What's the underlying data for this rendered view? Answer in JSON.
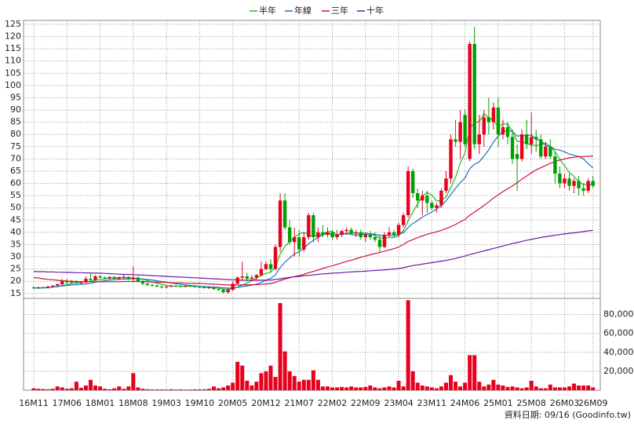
{
  "chart_data": {
    "type": "candlestick",
    "footnote": "資料日期: 09/16 (Goodinfo.tw)",
    "categories": [
      "16M11",
      null,
      null,
      null,
      null,
      null,
      null,
      "17M06",
      null,
      null,
      null,
      null,
      null,
      null,
      "18M01",
      null,
      null,
      null,
      null,
      null,
      null,
      "18M08",
      null,
      null,
      null,
      null,
      null,
      null,
      "19M03",
      null,
      null,
      null,
      null,
      null,
      null,
      "19M10",
      null,
      null,
      null,
      null,
      null,
      null,
      "20M05",
      null,
      null,
      null,
      null,
      null,
      null,
      "20M12",
      null,
      null,
      null,
      null,
      null,
      null,
      "21M07",
      null,
      null,
      null,
      null,
      null,
      null,
      "22M02",
      null,
      null,
      null,
      null,
      null,
      null,
      "22M09",
      null,
      null,
      null,
      null,
      null,
      null,
      "23M04",
      null,
      null,
      null,
      null,
      null,
      null,
      "23M11",
      null,
      null,
      null,
      null,
      null,
      null,
      "24M06",
      null,
      null,
      null,
      null,
      null,
      null,
      "25M01",
      null,
      null,
      null,
      null,
      null,
      null,
      "25M08",
      null,
      null,
      null,
      null,
      null,
      null,
      "26M03",
      null,
      null,
      null,
      null,
      null,
      "26M09"
    ],
    "open": [
      17.5,
      17.2,
      17.5,
      17.3,
      17.8,
      18.2,
      18.8,
      20,
      19.5,
      20,
      19.2,
      19.5,
      21,
      20.5,
      22,
      21.5,
      21.2,
      21.8,
      21,
      21.5,
      21.8,
      20.8,
      21.5,
      20,
      19,
      18.5,
      18.2,
      17.8,
      17.5,
      17.8,
      18.2,
      18,
      17.8,
      18.1,
      17.9,
      17.7,
      17.5,
      17.2,
      17.5,
      16.8,
      16.5,
      15.5,
      16.5,
      19,
      21.5,
      22,
      21,
      21.5,
      22.5,
      25,
      27,
      25,
      34,
      53,
      42,
      36,
      38,
      33,
      38,
      47,
      38,
      40,
      39,
      40,
      38,
      39,
      40.5,
      41,
      39.5,
      40,
      38,
      39,
      38,
      37,
      34,
      39,
      40,
      39,
      43,
      47,
      65,
      56,
      53,
      55,
      52,
      50,
      51,
      57,
      62,
      78,
      77,
      88,
      70,
      117,
      76,
      80,
      87,
      85,
      91,
      80,
      83,
      79,
      72,
      70,
      80,
      76,
      79,
      78,
      71,
      75,
      71,
      64,
      60,
      62,
      59,
      61,
      58,
      57,
      61
    ],
    "high": [
      18,
      17.8,
      18,
      18.2,
      18.5,
      19,
      21,
      21,
      20.5,
      20.5,
      20,
      22,
      23,
      22.5,
      22.5,
      22,
      22,
      22,
      22,
      23,
      22,
      26,
      22,
      20.5,
      19.5,
      19,
      18.8,
      18.3,
      18,
      18.5,
      18.5,
      18.5,
      18.3,
      18.5,
      18.3,
      18,
      18,
      17.8,
      18,
      17.5,
      17,
      17,
      20,
      22,
      28,
      23.5,
      22.5,
      23,
      28,
      28,
      29,
      35,
      56,
      56,
      45,
      42,
      41,
      40,
      48,
      48,
      42,
      43,
      42,
      41,
      41,
      41,
      42,
      42,
      41,
      41,
      40,
      40.5,
      40,
      39,
      40,
      42,
      41,
      44,
      48,
      67,
      66,
      58,
      57,
      57,
      53,
      52,
      58,
      65,
      80,
      86,
      90,
      90,
      118,
      124,
      88,
      90,
      95,
      93,
      95,
      86,
      85,
      82,
      76,
      82,
      86,
      89,
      82,
      80,
      77,
      78,
      73,
      67,
      64,
      64,
      62,
      63,
      60,
      62,
      63
    ],
    "low": [
      16.8,
      16.9,
      17,
      17,
      17.5,
      18,
      18.5,
      18.8,
      19,
      19,
      18.5,
      19.3,
      20,
      20.2,
      21,
      20.8,
      20.5,
      20.8,
      20.5,
      20.8,
      20.5,
      20,
      19.5,
      18.5,
      18,
      17.8,
      17.5,
      17,
      17,
      17.5,
      17.8,
      17.5,
      17.5,
      17.6,
      17.5,
      17.2,
      17,
      16.8,
      16.5,
      16,
      15,
      14.8,
      16,
      18.8,
      20.5,
      20,
      20,
      20.5,
      22,
      24.5,
      24,
      24.5,
      32,
      41,
      35,
      30,
      30,
      32,
      37,
      36,
      36,
      38,
      38,
      37,
      37,
      38,
      39,
      39,
      38,
      37,
      36,
      37,
      36,
      32,
      33.5,
      38,
      38,
      38,
      42,
      46,
      54,
      50,
      47,
      48,
      49,
      48,
      50,
      56,
      60,
      75,
      70,
      75,
      69,
      74,
      72,
      75,
      80,
      82,
      75,
      78,
      76,
      68,
      57,
      69,
      74,
      72,
      73,
      70,
      70,
      70,
      60,
      58,
      58,
      57,
      56,
      55,
      55,
      56,
      58
    ],
    "close": [
      17.2,
      17.5,
      17.3,
      17.8,
      18.2,
      18.8,
      20,
      19.5,
      20,
      19.2,
      19.5,
      21,
      20.5,
      22,
      21.5,
      21.2,
      21.8,
      21,
      21.5,
      21.8,
      20.8,
      21.5,
      20,
      19,
      18.5,
      18.2,
      17.8,
      17.5,
      17.8,
      18.2,
      18,
      17.8,
      18.1,
      17.9,
      17.7,
      17.5,
      17.2,
      17.5,
      16.8,
      16.5,
      15.5,
      16.5,
      19,
      21.5,
      22,
      21,
      21.5,
      22.5,
      25,
      27,
      25,
      34,
      53,
      42,
      36,
      38,
      33,
      38,
      47,
      38,
      40,
      39,
      40,
      38,
      39,
      40.5,
      41,
      39.5,
      40,
      38,
      39,
      38,
      37,
      34,
      39,
      40,
      39,
      43,
      47,
      65,
      56,
      53,
      55,
      52,
      50,
      51,
      57,
      62,
      78,
      77,
      85,
      76,
      117,
      76,
      80,
      87,
      85,
      91,
      80,
      83,
      79,
      70,
      70,
      80,
      76,
      79,
      78,
      71,
      75,
      71,
      64,
      60,
      62,
      59,
      61,
      58,
      57,
      61,
      59
    ],
    "up_color": "#e8001c",
    "down_color": "#00a000",
    "ylim": [
      13,
      125
    ],
    "yticks": [
      15,
      20,
      25,
      30,
      35,
      40,
      45,
      50,
      55,
      60,
      65,
      70,
      75,
      80,
      85,
      90,
      95,
      100,
      105,
      110,
      115,
      120,
      125
    ],
    "series": [
      {
        "name": "半年",
        "color": "#22bb22",
        "values": [
          17.2,
          17.3,
          17.3,
          17.4,
          17.6,
          17.8,
          18.3,
          18.6,
          19.1,
          19.3,
          19.5,
          19.9,
          19.95,
          20.4,
          20.6,
          21,
          21.3,
          21.3,
          21.5,
          21.5,
          21.4,
          21.4,
          21.1,
          20.8,
          20.3,
          19.7,
          19.2,
          18.7,
          18.3,
          18,
          17.9,
          17.9,
          17.9,
          18,
          18,
          17.8,
          17.7,
          17.6,
          17.4,
          17.2,
          16.8,
          16.7,
          17,
          17.6,
          18.5,
          19.3,
          20.3,
          21.3,
          22.3,
          23.2,
          23.7,
          25.8,
          31.1,
          34.3,
          36.2,
          38,
          39.3,
          40,
          39,
          38.3,
          39,
          39,
          40.3,
          40.3,
          39,
          39.4,
          39.6,
          39.7,
          39.7,
          39.7,
          39.7,
          39.3,
          38.6,
          37.7,
          37.5,
          37.8,
          37.8,
          38.7,
          40.7,
          44.7,
          48.3,
          51.5,
          54.8,
          56.3,
          55.2,
          52.8,
          53,
          54.5,
          58.3,
          62.5,
          68.3,
          72.5,
          82.5,
          84.8,
          85.2,
          88.5,
          86.8,
          85.8,
          83.2,
          84.3,
          84.2,
          81.3,
          77.2,
          77,
          76.3,
          75.7,
          75.5,
          75.7,
          76.5,
          75,
          73,
          69.8,
          67.2,
          64.5,
          62.8,
          60.7,
          59.5,
          59.7,
          59.3
        ]
      },
      {
        "name": "年線",
        "color": "#1a73c8",
        "values": [
          17.2,
          17.3,
          17.3,
          17.4,
          17.6,
          17.8,
          18.1,
          18.3,
          18.5,
          18.6,
          18.7,
          18.9,
          19.2,
          19.6,
          19.9,
          20.2,
          20.5,
          20.6,
          20.8,
          20.9,
          21,
          21.1,
          21.1,
          20.9,
          20.7,
          20.5,
          20.2,
          19.9,
          19.6,
          19.3,
          19,
          18.7,
          18.5,
          18.3,
          18.1,
          17.9,
          17.8,
          17.7,
          17.6,
          17.5,
          17.3,
          17.2,
          17.2,
          17.5,
          17.8,
          18.1,
          18.4,
          18.8,
          19.5,
          20.4,
          21.2,
          22.6,
          25.6,
          27.8,
          29.5,
          31.2,
          32.1,
          33.4,
          35.4,
          36.7,
          37.9,
          39,
          39.5,
          39,
          38.8,
          39.2,
          39.4,
          39.2,
          38.8,
          39.2,
          39.2,
          39.3,
          39.2,
          38.8,
          38.6,
          38.7,
          38.6,
          39.2,
          39.8,
          42,
          43.6,
          44.8,
          46.2,
          47.3,
          48.3,
          49.5,
          51,
          52.9,
          55.4,
          58,
          60.3,
          62.2,
          66,
          67.8,
          68.8,
          71.1,
          73.7,
          76.9,
          79.3,
          81,
          81.7,
          81.2,
          79.3,
          79.6,
          79.5,
          79.8,
          78,
          77.5,
          75.5,
          75,
          73.9,
          73.6,
          72.9,
          72,
          71.5,
          71,
          70,
          68,
          66.3
        ]
      },
      {
        "name": "三年",
        "color": "#d0103a",
        "values": [
          21.5,
          21.3,
          21,
          20.8,
          20.6,
          20.4,
          20.2,
          20.1,
          20,
          19.9,
          19.8,
          19.8,
          19.8,
          19.8,
          19.8,
          19.8,
          19.8,
          19.8,
          19.8,
          19.9,
          19.9,
          19.9,
          19.9,
          19.9,
          19.8,
          19.7,
          19.6,
          19.5,
          19.5,
          19.4,
          19.3,
          19.3,
          19.2,
          19.2,
          19.1,
          19.1,
          19,
          18.9,
          18.8,
          18.7,
          18.6,
          18.5,
          18.5,
          18.5,
          18.5,
          18.5,
          18.6,
          18.6,
          18.7,
          18.9,
          19.1,
          19.5,
          20.3,
          20.9,
          21.4,
          21.9,
          22.3,
          22.8,
          23.5,
          24,
          24.6,
          25.2,
          25.8,
          26.3,
          26.9,
          27.5,
          28.1,
          28.6,
          29.2,
          29.8,
          30.3,
          30.8,
          31.3,
          31.8,
          32.3,
          32.8,
          33.3,
          34,
          35,
          36.3,
          37,
          37.8,
          38.5,
          39.2,
          39.7,
          40.2,
          40.8,
          41.5,
          42.3,
          43.2,
          44.3,
          45.3,
          47,
          48.3,
          49.6,
          51,
          52.4,
          54,
          55.3,
          56.6,
          57.8,
          59,
          60.3,
          61.7,
          63,
          64.3,
          65.5,
          66.4,
          67.3,
          68.2,
          68.9,
          69.5,
          70,
          70.4,
          70.7,
          70.9,
          71,
          71.1,
          71.2
        ]
      },
      {
        "name": "十年",
        "color": "#6a1aa8",
        "values": [
          24,
          23.9,
          23.9,
          23.8,
          23.8,
          23.7,
          23.7,
          23.6,
          23.6,
          23.5,
          23.5,
          23.4,
          23.4,
          23.3,
          23.3,
          23.2,
          23.1,
          23,
          22.9,
          22.8,
          22.8,
          22.7,
          22.6,
          22.5,
          22.4,
          22.3,
          22.2,
          22.1,
          22,
          21.9,
          21.8,
          21.7,
          21.6,
          21.5,
          21.4,
          21.3,
          21.2,
          21.1,
          21,
          20.9,
          20.8,
          20.7,
          20.6,
          20.5,
          20.4,
          20.4,
          20.4,
          20.4,
          20.4,
          20.4,
          20.5,
          20.7,
          21,
          21.3,
          21.6,
          21.8,
          22,
          22.2,
          22.4,
          22.6,
          22.8,
          23,
          23.1,
          23.3,
          23.4,
          23.5,
          23.7,
          23.8,
          23.9,
          24,
          24.1,
          24.3,
          24.4,
          24.5,
          24.6,
          24.8,
          25,
          25.2,
          25.5,
          26,
          26.4,
          26.7,
          27,
          27.3,
          27.6,
          27.9,
          28.2,
          28.5,
          28.9,
          29.3,
          29.8,
          30.3,
          30.9,
          31.4,
          31.9,
          32.4,
          32.9,
          33.4,
          33.9,
          34.4,
          34.9,
          35.4,
          35.8,
          36.3,
          36.7,
          37.1,
          37.5,
          37.9,
          38.2,
          38.5,
          38.8,
          39.1,
          39.3,
          39.6,
          39.8,
          40,
          40.3,
          40.6,
          40.8
        ]
      }
    ],
    "volume": {
      "color": "#e8001c",
      "ylim": [
        0,
        97000
      ],
      "yticks": [
        {
          "value": 20000,
          "label": "20,000"
        },
        {
          "value": 40000,
          "label": "40,000"
        },
        {
          "value": 60000,
          "label": "60,000"
        },
        {
          "value": 80000,
          "label": "80,000"
        }
      ],
      "values": [
        2000,
        1500,
        1200,
        1000,
        1500,
        4000,
        3000,
        1500,
        2000,
        9000,
        2500,
        5000,
        11000,
        5000,
        4000,
        1500,
        1000,
        2000,
        4000,
        1500,
        4000,
        18000,
        3000,
        1500,
        1000,
        800,
        800,
        800,
        700,
        1000,
        700,
        800,
        600,
        700,
        900,
        800,
        1000,
        1500,
        4000,
        2000,
        3000,
        5000,
        8000,
        30000,
        26000,
        10000,
        5000,
        9000,
        18000,
        20000,
        26000,
        14000,
        92000,
        41000,
        20000,
        15000,
        9000,
        11000,
        11000,
        21000,
        11000,
        4000,
        4000,
        3000,
        3000,
        3500,
        3000,
        4000,
        3000,
        3000,
        3500,
        5000,
        3000,
        2000,
        3000,
        4000,
        3000,
        10000,
        4000,
        95000,
        20000,
        8000,
        5000,
        4000,
        3000,
        2000,
        4000,
        8000,
        16000,
        9000,
        4000,
        8000,
        37000,
        37000,
        9000,
        4000,
        6000,
        11000,
        6000,
        5000,
        3500,
        4000,
        3000,
        2000,
        3000,
        10000,
        4000,
        2000,
        2000,
        6000,
        3000,
        3000,
        3000,
        4000,
        7000,
        5000,
        5000,
        5000,
        3000
      ]
    },
    "grid": true
  }
}
